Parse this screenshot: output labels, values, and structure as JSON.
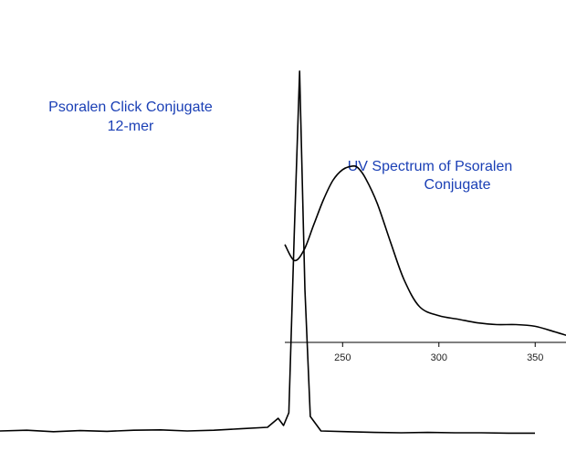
{
  "chart_data": [
    {
      "type": "line",
      "title_lines": [
        "Psoralen Click Conjugate",
        "12-mer"
      ],
      "xlabel": "",
      "ylabel": "",
      "axes_shown": false,
      "grid": false,
      "series": [
        {
          "x": [
            0,
            5,
            10,
            15,
            20,
            25,
            30,
            35,
            40,
            45,
            50,
            52,
            53,
            54,
            55,
            56,
            57,
            58,
            60,
            65,
            70,
            75,
            80,
            85,
            90,
            95,
            100
          ],
          "y": [
            0.01,
            0.012,
            0.008,
            0.011,
            0.009,
            0.012,
            0.013,
            0.01,
            0.012,
            0.016,
            0.02,
            0.045,
            0.025,
            0.06,
            0.55,
            1.0,
            0.4,
            0.05,
            0.01,
            0.008,
            0.006,
            0.005,
            0.006,
            0.005,
            0.005,
            0.004,
            0.004
          ]
        }
      ],
      "xlim": [
        0,
        100
      ],
      "ylim": [
        0,
        1.05
      ]
    },
    {
      "type": "line",
      "title_lines": [
        "UV Spectrum of Psoralen",
        "Conjugate"
      ],
      "xlabel": "",
      "ylabel": "",
      "grid": false,
      "x_ticks": [
        250,
        300,
        350
      ],
      "xlim": [
        220,
        366
      ],
      "ylim": [
        0,
        1
      ],
      "series": [
        {
          "x": [
            220,
            225,
            230,
            235,
            240,
            245,
            250,
            255,
            258,
            262,
            268,
            275,
            282,
            290,
            300,
            310,
            320,
            330,
            340,
            350,
            360,
            366
          ],
          "y": [
            0.55,
            0.46,
            0.52,
            0.66,
            0.8,
            0.91,
            0.97,
            0.99,
            0.98,
            0.92,
            0.78,
            0.56,
            0.35,
            0.2,
            0.15,
            0.13,
            0.11,
            0.1,
            0.1,
            0.09,
            0.06,
            0.04
          ]
        }
      ]
    }
  ]
}
